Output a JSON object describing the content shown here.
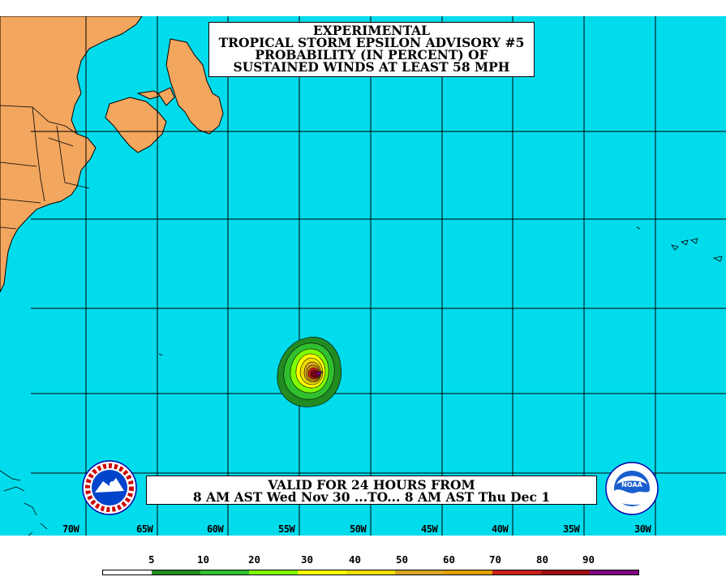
{
  "title": {
    "line1": "EXPERIMENTAL",
    "line2": "TROPICAL STORM EPSILON ADVISORY #5",
    "line3": "PROBABILITY (IN PERCENT) OF",
    "line4": "SUSTAINED WINDS AT LEAST 58 MPH"
  },
  "valid": {
    "line1": "VALID FOR 24 HOURS FROM",
    "line2": "8 AM AST Wed Nov 30 ...TO... 8 AM AST Thu Dec 1"
  },
  "longitudes": [
    "70W",
    "65W",
    "60W",
    "55W",
    "50W",
    "45W",
    "40W",
    "35W",
    "30W"
  ],
  "legend": {
    "labels": [
      "5",
      "10",
      "20",
      "30",
      "40",
      "50",
      "60",
      "70",
      "80",
      "90"
    ],
    "colors": [
      "#ffffff",
      "#228b22",
      "#2fbf2f",
      "#7fff00",
      "#ffff00",
      "#eedd00",
      "#daa520",
      "#e0a000",
      "#cc2020",
      "#a01010",
      "#8b0020",
      "#800080"
    ]
  },
  "colors": {
    "ocean": "#00dcec",
    "land": "#f2a65e",
    "grid": "#000000"
  },
  "logos": {
    "left": "nws-logo-icon",
    "right": "noaa-logo-icon",
    "right_text": "NOAA"
  }
}
